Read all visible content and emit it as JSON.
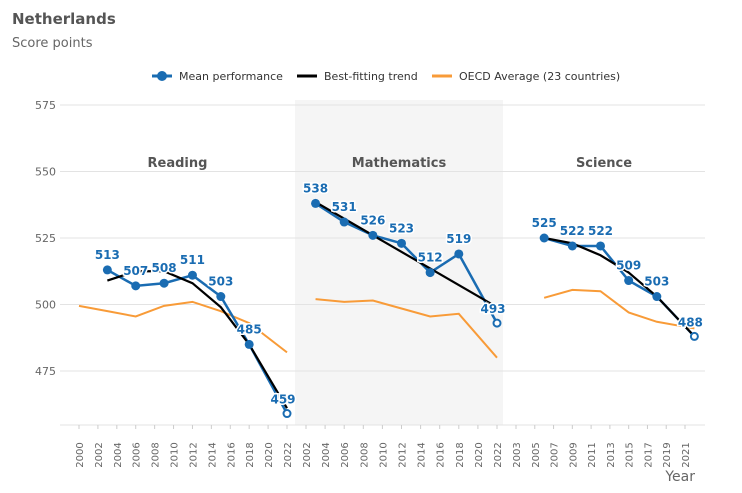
{
  "header": {
    "title": "Netherlands",
    "subtitle": "Score points"
  },
  "colors": {
    "mean": "#1a6cb2",
    "trend": "#000000",
    "oecd": "#f89b38",
    "grid": "#e3e3e3",
    "band": "#f5f5f5"
  },
  "chart_data": {
    "type": "line",
    "title": "Netherlands",
    "ylabel": "Score points",
    "xlabel": "Year",
    "ylim": [
      455,
      575
    ],
    "yticks": [
      475,
      500,
      525,
      550,
      575
    ],
    "grid": true,
    "legend": {
      "placement": "top",
      "entries": [
        "Mean performance",
        "Best-fitting trend",
        "OECD Average (23 countries)"
      ]
    },
    "panels": [
      {
        "name": "Reading",
        "xrange": [
          2000,
          2022
        ],
        "xticks": [
          2000,
          2002,
          2004,
          2006,
          2008,
          2010,
          2012,
          2014,
          2016,
          2018,
          2020,
          2022
        ],
        "shaded": false,
        "mean": {
          "x": [
            2003,
            2006,
            2009,
            2012,
            2015,
            2018,
            2022
          ],
          "y": [
            513,
            507,
            508,
            511,
            503,
            485,
            459
          ]
        },
        "trend": {
          "x": [
            2003,
            2006,
            2009,
            2012,
            2015,
            2018,
            2022
          ],
          "y": [
            509,
            512.5,
            512.5,
            508,
            499,
            485,
            461
          ]
        },
        "oecd": {
          "x": [
            2000,
            2003,
            2006,
            2009,
            2012,
            2015,
            2018,
            2022
          ],
          "y": [
            499.5,
            497.5,
            495.5,
            499.5,
            501,
            497.5,
            493,
            482
          ]
        }
      },
      {
        "name": "Mathematics",
        "xrange": [
          2002,
          2022
        ],
        "xticks": [
          2002,
          2004,
          2006,
          2008,
          2010,
          2012,
          2014,
          2016,
          2018,
          2020,
          2022
        ],
        "shaded": true,
        "mean": {
          "x": [
            2003,
            2006,
            2009,
            2012,
            2015,
            2018,
            2022
          ],
          "y": [
            538,
            531,
            526,
            523,
            512,
            519,
            493
          ]
        },
        "trend": {
          "x": [
            2003,
            2022
          ],
          "y": [
            538.5,
            499
          ]
        },
        "oecd": {
          "x": [
            2003,
            2006,
            2009,
            2012,
            2015,
            2018,
            2022
          ],
          "y": [
            502,
            501,
            501.5,
            498.5,
            495.5,
            496.5,
            480
          ]
        }
      },
      {
        "name": "Science",
        "xrange": [
          2003,
          2021
        ],
        "xticks": [
          2003,
          2005,
          2007,
          2009,
          2011,
          2013,
          2015,
          2017,
          2019,
          2021
        ],
        "shaded": false,
        "mean": {
          "x": [
            2006,
            2009,
            2012,
            2015,
            2018,
            2022
          ],
          "y": [
            525,
            522,
            522,
            509,
            503,
            488
          ]
        },
        "trend": {
          "x": [
            2006,
            2009,
            2012,
            2015,
            2018,
            2022
          ],
          "y": [
            525,
            523,
            518.5,
            512,
            503,
            488
          ]
        },
        "oecd": {
          "x": [
            2006,
            2009,
            2012,
            2015,
            2018,
            2022
          ],
          "y": [
            502.5,
            505.5,
            505,
            497,
            493.5,
            491
          ]
        }
      }
    ]
  }
}
